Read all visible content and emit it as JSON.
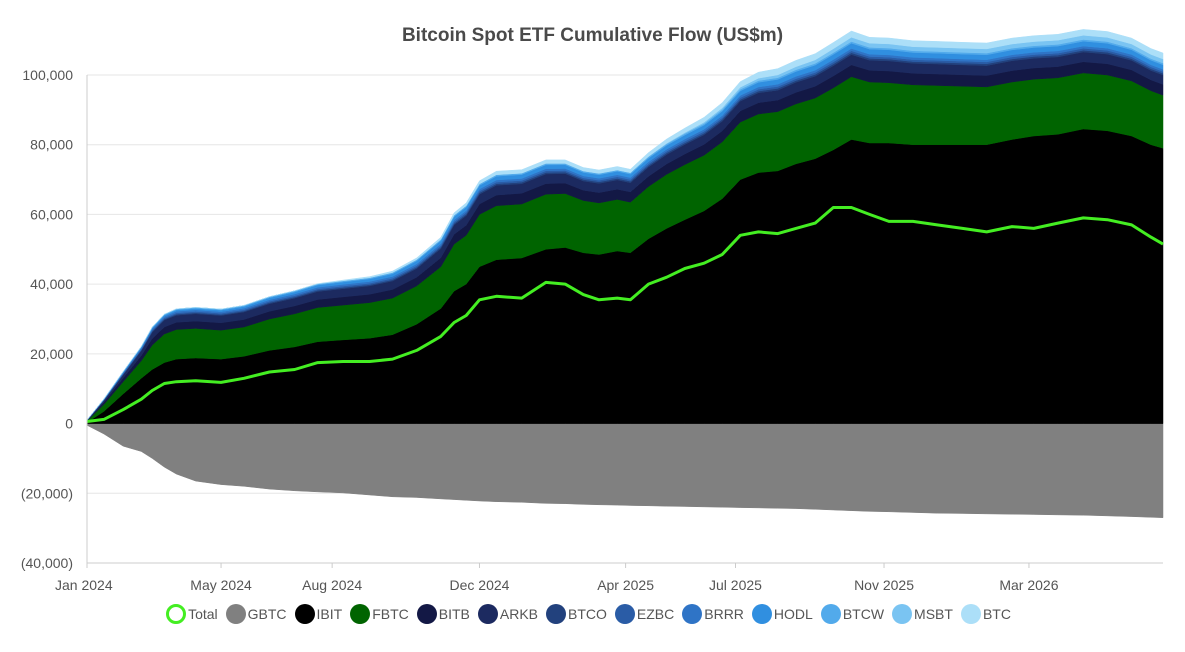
{
  "chart_data": {
    "type": "area",
    "title": "Bitcoin Spot ETF Cumulative Flow (US$m)",
    "xlabel": "",
    "ylabel": "",
    "ylim": [
      -40000,
      100000
    ],
    "x_range": [
      "2024-01-11",
      "2026-06-20"
    ],
    "grid": true,
    "legend_position": "bottom",
    "y_ticks": [
      {
        "value": 100000,
        "label": "100,000"
      },
      {
        "value": 80000,
        "label": "80,000"
      },
      {
        "value": 60000,
        "label": "60,000"
      },
      {
        "value": 40000,
        "label": "40,000"
      },
      {
        "value": 20000,
        "label": "20,000"
      },
      {
        "value": 0,
        "label": "0"
      },
      {
        "value": -20000,
        "label": "(20,000)"
      },
      {
        "value": -40000,
        "label": "(40,000)"
      }
    ],
    "x_ticks": [
      {
        "date": "2024-01-11",
        "label": "Jan 2024"
      },
      {
        "date": "2024-05-01",
        "label": "May 2024"
      },
      {
        "date": "2024-08-01",
        "label": "Aug 2024"
      },
      {
        "date": "2024-12-01",
        "label": "Dec 2024"
      },
      {
        "date": "2025-04-01",
        "label": "Apr 2025"
      },
      {
        "date": "2025-07-01",
        "label": "Jul 2025"
      },
      {
        "date": "2025-11-01",
        "label": "Nov 2025"
      },
      {
        "date": "2026-03-01",
        "label": "Mar 2026"
      }
    ],
    "dates": [
      "2024-01-11",
      "2024-01-25",
      "2024-02-10",
      "2024-02-25",
      "2024-03-05",
      "2024-03-15",
      "2024-03-25",
      "2024-04-10",
      "2024-05-01",
      "2024-05-20",
      "2024-06-10",
      "2024-07-01",
      "2024-07-20",
      "2024-08-10",
      "2024-09-01",
      "2024-09-20",
      "2024-10-10",
      "2024-10-30",
      "2024-11-10",
      "2024-11-20",
      "2024-12-01",
      "2024-12-15",
      "2025-01-05",
      "2025-01-25",
      "2025-02-10",
      "2025-02-25",
      "2025-03-10",
      "2025-03-25",
      "2025-04-05",
      "2025-04-20",
      "2025-05-05",
      "2025-05-20",
      "2025-06-05",
      "2025-06-20",
      "2025-07-05",
      "2025-07-20",
      "2025-08-05",
      "2025-08-20",
      "2025-09-05",
      "2025-09-20",
      "2025-10-05",
      "2025-10-20",
      "2025-11-05",
      "2025-11-25",
      "2025-12-15",
      "2026-01-05",
      "2026-01-25",
      "2026-02-15",
      "2026-03-05",
      "2026-03-25",
      "2026-04-15",
      "2026-05-05",
      "2026-05-25",
      "2026-06-10",
      "2026-06-20"
    ],
    "series": [
      {
        "name": "Total",
        "color": "#44ee22",
        "type": "line",
        "values": [
          600,
          1200,
          4000,
          7000,
          9500,
          11500,
          12000,
          12300,
          11800,
          13000,
          14800,
          15500,
          17500,
          17800,
          17800,
          18500,
          21000,
          25000,
          29000,
          31000,
          35500,
          36500,
          36000,
          40500,
          40000,
          37000,
          35500,
          36000,
          35500,
          40000,
          42000,
          44500,
          46000,
          48500,
          54000,
          55000,
          54500,
          56000,
          57500,
          62000,
          62000,
          60000,
          58000,
          58000,
          57000,
          56000,
          55000,
          56500,
          56000,
          57500,
          59000,
          58500,
          57000,
          53500,
          51500
        ]
      },
      {
        "name": "GBTC",
        "color": "#808080",
        "type": "area",
        "values": [
          -500,
          -3000,
          -6500,
          -8000,
          -10000,
          -12500,
          -14500,
          -16500,
          -17500,
          -18000,
          -18800,
          -19300,
          -19600,
          -19900,
          -20500,
          -21000,
          -21200,
          -21600,
          -21800,
          -22000,
          -22200,
          -22400,
          -22600,
          -22900,
          -23000,
          -23200,
          -23300,
          -23400,
          -23500,
          -23600,
          -23700,
          -23800,
          -23900,
          -24000,
          -24100,
          -24200,
          -24300,
          -24400,
          -24600,
          -24800,
          -25000,
          -25200,
          -25300,
          -25500,
          -25700,
          -25800,
          -25900,
          -26000,
          -26100,
          -26200,
          -26300,
          -26500,
          -26700,
          -26900,
          -27000
        ]
      },
      {
        "name": "IBIT",
        "color": "#000000",
        "type": "area",
        "values": [
          300,
          3500,
          8500,
          13000,
          15500,
          17500,
          18500,
          18800,
          18500,
          19300,
          21000,
          22000,
          23500,
          24000,
          24500,
          25500,
          28500,
          33000,
          38000,
          40000,
          45000,
          47000,
          47500,
          50000,
          50500,
          49000,
          48500,
          49500,
          49000,
          53000,
          56000,
          58500,
          61000,
          64500,
          70000,
          72000,
          72500,
          74500,
          76000,
          78500,
          81500,
          80500,
          80500,
          80000,
          80000,
          80000,
          80000,
          81500,
          82500,
          83000,
          84500,
          84000,
          82500,
          80000,
          79000
        ]
      },
      {
        "name": "FBTC",
        "color": "#006400",
        "type": "area",
        "values": [
          400,
          2000,
          3500,
          5000,
          7000,
          8200,
          8500,
          8500,
          8300,
          8400,
          9000,
          9500,
          9800,
          10000,
          10200,
          10500,
          11000,
          12000,
          13500,
          14000,
          15000,
          15500,
          15500,
          15800,
          15500,
          15000,
          14800,
          14800,
          14500,
          15000,
          15500,
          15800,
          16000,
          16300,
          16500,
          16800,
          17000,
          17200,
          17400,
          17800,
          18000,
          17500,
          17300,
          17200,
          17000,
          16800,
          16600,
          16500,
          16300,
          16200,
          16100,
          16000,
          15800,
          15500,
          15200
        ]
      },
      {
        "name": "BITB",
        "color": "#131845",
        "type": "area",
        "values": [
          100,
          600,
          1100,
          1500,
          1900,
          2000,
          2050,
          2100,
          2100,
          2150,
          2200,
          2250,
          2300,
          2350,
          2400,
          2450,
          2500,
          2600,
          2800,
          2900,
          3000,
          3050,
          3050,
          3050,
          3000,
          2950,
          2950,
          2950,
          2950,
          2950,
          3000,
          3050,
          3100,
          3150,
          3200,
          3250,
          3300,
          3300,
          3350,
          3400,
          3400,
          3350,
          3350,
          3300,
          3300,
          3250,
          3250,
          3250,
          3200,
          3200,
          3200,
          3200,
          3150,
          3100,
          3100
        ]
      },
      {
        "name": "ARKB",
        "color": "#1c2a60",
        "type": "area",
        "values": [
          100,
          500,
          900,
          1400,
          1800,
          2000,
          2050,
          2100,
          2100,
          2150,
          2200,
          2250,
          2300,
          2350,
          2400,
          2450,
          2500,
          2600,
          2700,
          2750,
          2800,
          2800,
          2750,
          2750,
          2700,
          2650,
          2650,
          2650,
          2650,
          2650,
          2700,
          2700,
          2750,
          2800,
          2800,
          2850,
          2850,
          2900,
          2900,
          2950,
          2950,
          2900,
          2900,
          2850,
          2850,
          2850,
          2850,
          2850,
          2800,
          2800,
          2800,
          2800,
          2750,
          2700,
          2700
        ]
      },
      {
        "name": "BTCO",
        "color": "#22417d",
        "type": "area",
        "values": [
          30,
          100,
          150,
          200,
          250,
          280,
          300,
          300,
          300,
          300,
          310,
          320,
          330,
          340,
          350,
          360,
          370,
          390,
          410,
          420,
          430,
          440,
          440,
          440,
          430,
          420,
          420,
          420,
          420,
          430,
          440,
          450,
          460,
          470,
          480,
          490,
          500,
          500,
          510,
          520,
          520,
          510,
          510,
          500,
          500,
          500,
          500,
          500,
          500,
          500,
          500,
          500,
          490,
          480,
          480
        ]
      },
      {
        "name": "EZBC",
        "color": "#2a5ca6",
        "type": "area",
        "values": [
          30,
          100,
          200,
          250,
          300,
          330,
          350,
          350,
          350,
          350,
          360,
          370,
          380,
          390,
          400,
          410,
          420,
          440,
          460,
          470,
          480,
          490,
          490,
          490,
          480,
          470,
          470,
          470,
          470,
          480,
          490,
          500,
          510,
          520,
          530,
          540,
          550,
          550,
          560,
          570,
          570,
          560,
          560,
          550,
          550,
          550,
          550,
          550,
          550,
          550,
          550,
          550,
          540,
          530,
          530
        ]
      },
      {
        "name": "BRRR",
        "color": "#2f74c6",
        "type": "area",
        "values": [
          30,
          100,
          250,
          350,
          400,
          430,
          450,
          450,
          450,
          450,
          460,
          470,
          480,
          490,
          500,
          510,
          520,
          540,
          560,
          570,
          580,
          590,
          590,
          590,
          580,
          570,
          570,
          570,
          570,
          580,
          590,
          600,
          610,
          620,
          630,
          640,
          650,
          650,
          660,
          670,
          670,
          660,
          660,
          650,
          650,
          650,
          650,
          650,
          650,
          650,
          650,
          650,
          640,
          630,
          630
        ]
      },
      {
        "name": "HODL",
        "color": "#308fe0",
        "type": "area",
        "values": [
          30,
          100,
          200,
          250,
          300,
          350,
          400,
          420,
          450,
          500,
          550,
          600,
          650,
          700,
          750,
          800,
          850,
          900,
          950,
          1000,
          1050,
          1100,
          1100,
          1100,
          1050,
          1000,
          1000,
          1000,
          1000,
          1050,
          1100,
          1150,
          1200,
          1250,
          1300,
          1350,
          1400,
          1400,
          1450,
          1500,
          1500,
          1450,
          1450,
          1400,
          1400,
          1400,
          1400,
          1400,
          1400,
          1400,
          1400,
          1400,
          1350,
          1300,
          1300
        ]
      },
      {
        "name": "BTCW",
        "color": "#52aaeb",
        "type": "area",
        "values": [
          10,
          50,
          100,
          150,
          200,
          250,
          300,
          300,
          300,
          300,
          310,
          320,
          330,
          340,
          350,
          360,
          370,
          380,
          390,
          400,
          410,
          420,
          420,
          420,
          410,
          400,
          400,
          400,
          400,
          410,
          420,
          430,
          440,
          450,
          460,
          470,
          480,
          480,
          490,
          500,
          500,
          490,
          490,
          480,
          480,
          480,
          480,
          480,
          480,
          480,
          480,
          480,
          470,
          460,
          460
        ]
      },
      {
        "name": "MSBT",
        "color": "#7ac4f2",
        "type": "area",
        "values": [
          0,
          0,
          0,
          0,
          0,
          0,
          0,
          0,
          0,
          0,
          0,
          0,
          0,
          0,
          0,
          0,
          0,
          0,
          0,
          0,
          0,
          0,
          0,
          0,
          0,
          0,
          0,
          0,
          0,
          100,
          200,
          300,
          400,
          500,
          600,
          700,
          800,
          900,
          1000,
          1100,
          1200,
          1200,
          1200,
          1200,
          1200,
          1200,
          1200,
          1200,
          1200,
          1200,
          1200,
          1200,
          1200,
          1200,
          1200
        ]
      },
      {
        "name": "BTC",
        "color": "#acdff8",
        "type": "area",
        "values": [
          0,
          0,
          0,
          0,
          0,
          0,
          0,
          0,
          0,
          0,
          0,
          0,
          100,
          200,
          300,
          400,
          500,
          600,
          700,
          800,
          900,
          1000,
          1000,
          1000,
          1000,
          1000,
          1000,
          1000,
          1000,
          1100,
          1200,
          1300,
          1400,
          1500,
          1600,
          1700,
          1800,
          1800,
          1800,
          1800,
          1800,
          1700,
          1700,
          1700,
          1700,
          1700,
          1700,
          1700,
          1700,
          1700,
          1700,
          1700,
          1700,
          1700,
          1700
        ]
      }
    ]
  }
}
